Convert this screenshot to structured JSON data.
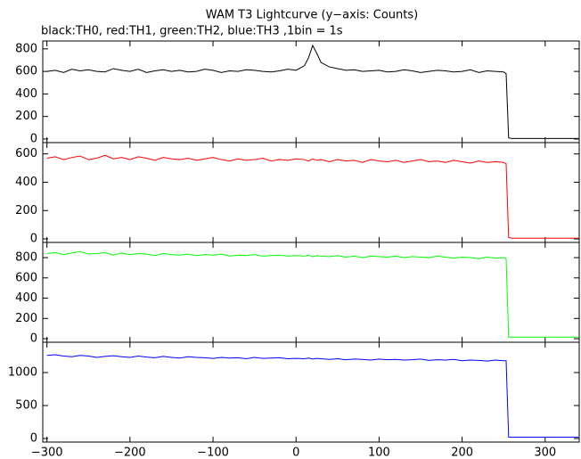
{
  "chart_data": {
    "type": "line",
    "title": "WAM T3 Lightcurve (y−axis: Counts)",
    "subtitle": "black:TH0, red:TH1, green:TH2, blue:TH3 ,1bin = 1s",
    "xlim": [
      -305,
      341
    ],
    "xticks": [
      {
        "value": -300,
        "label": "−300"
      },
      {
        "value": -200,
        "label": "−200"
      },
      {
        "value": -100,
        "label": "−100"
      },
      0,
      100,
      200,
      300
    ],
    "x": [
      -300,
      -290,
      -280,
      -270,
      -260,
      -250,
      -240,
      -230,
      -220,
      -210,
      -200,
      -190,
      -180,
      -170,
      -160,
      -150,
      -140,
      -130,
      -120,
      -110,
      -100,
      -90,
      -80,
      -70,
      -60,
      -50,
      -40,
      -30,
      -20,
      -10,
      0,
      10,
      15,
      20,
      25,
      30,
      40,
      50,
      60,
      70,
      80,
      90,
      100,
      110,
      120,
      130,
      140,
      150,
      160,
      170,
      180,
      190,
      200,
      210,
      220,
      230,
      240,
      250,
      253,
      256,
      260,
      270,
      280,
      290,
      300,
      310,
      320,
      330,
      340
    ],
    "panels": [
      {
        "ylim": [
          -32,
          870
        ],
        "yticks": [
          0,
          200,
          400,
          600,
          800
        ],
        "series": [
          {
            "color": "#000000",
            "values": [
              600,
              610,
              590,
              620,
              605,
              615,
              600,
              595,
              625,
              610,
              600,
              620,
              590,
              605,
              615,
              600,
              610,
              595,
              600,
              620,
              610,
              590,
              605,
              600,
              615,
              610,
              600,
              595,
              605,
              620,
              610,
              650,
              720,
              830,
              760,
              680,
              640,
              625,
              610,
              615,
              600,
              605,
              610,
              595,
              600,
              615,
              605,
              590,
              600,
              610,
              605,
              595,
              600,
              615,
              590,
              605,
              600,
              595,
              580,
              10,
              5,
              5,
              5,
              5,
              5,
              5,
              5,
              5,
              5
            ]
          }
        ]
      },
      {
        "ylim": [
          -25,
          680
        ],
        "yticks": [
          0,
          200,
          400,
          600
        ],
        "series": [
          {
            "color": "#ff0000",
            "values": [
              570,
              580,
              560,
              575,
              585,
              560,
              570,
              590,
              565,
              575,
              560,
              580,
              570,
              555,
              575,
              565,
              560,
              570,
              555,
              565,
              575,
              560,
              550,
              565,
              555,
              560,
              570,
              550,
              560,
              555,
              565,
              560,
              550,
              565,
              555,
              560,
              545,
              560,
              550,
              555,
              540,
              560,
              550,
              545,
              555,
              540,
              550,
              560,
              545,
              550,
              540,
              555,
              545,
              535,
              550,
              540,
              545,
              540,
              530,
              10,
              5,
              5,
              5,
              5,
              5,
              5,
              5,
              5,
              5
            ]
          }
        ]
      },
      {
        "ylim": [
          -35,
          950
        ],
        "yticks": [
          0,
          200,
          400,
          600,
          800
        ],
        "series": [
          {
            "color": "#00ff00",
            "values": [
              840,
              850,
              830,
              845,
              860,
              835,
              840,
              850,
              825,
              845,
              830,
              840,
              835,
              820,
              840,
              830,
              825,
              835,
              820,
              830,
              825,
              835,
              815,
              825,
              820,
              830,
              815,
              820,
              825,
              815,
              820,
              815,
              825,
              810,
              820,
              815,
              810,
              820,
              805,
              815,
              800,
              815,
              810,
              805,
              815,
              800,
              810,
              805,
              800,
              815,
              805,
              795,
              805,
              800,
              790,
              805,
              795,
              800,
              790,
              15,
              15,
              15,
              15,
              15,
              15,
              15,
              15,
              15,
              15
            ]
          }
        ]
      },
      {
        "ylim": [
          -54,
          1460
        ],
        "yticks": [
          0,
          500,
          1000
        ],
        "series": [
          {
            "color": "#0000ff",
            "values": [
              1260,
              1270,
              1250,
              1240,
              1260,
              1250,
              1230,
              1245,
              1255,
              1240,
              1230,
              1250,
              1235,
              1225,
              1245,
              1230,
              1220,
              1240,
              1230,
              1225,
              1215,
              1230,
              1220,
              1225,
              1210,
              1230,
              1215,
              1220,
              1225,
              1210,
              1215,
              1210,
              1220,
              1205,
              1215,
              1210,
              1200,
              1210,
              1195,
              1205,
              1200,
              1190,
              1205,
              1195,
              1200,
              1190,
              1195,
              1205,
              1185,
              1195,
              1190,
              1200,
              1180,
              1190,
              1185,
              1175,
              1190,
              1180,
              1180,
              20,
              20,
              20,
              20,
              20,
              20,
              20,
              20,
              20,
              20
            ]
          }
        ]
      }
    ]
  }
}
